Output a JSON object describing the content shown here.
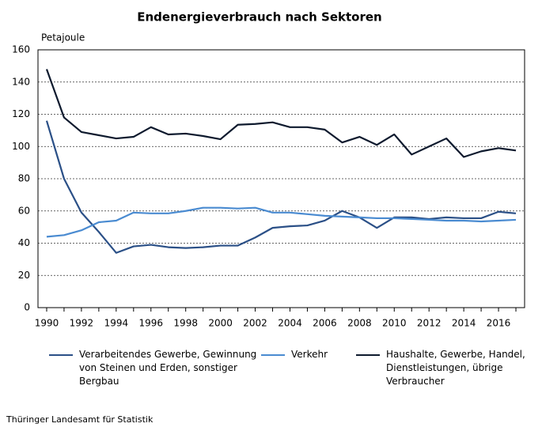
{
  "chart_data": {
    "type": "line",
    "title": "Endenergieverbrauch nach Sektoren",
    "y_label": "Petajoule",
    "source": "Thüringer Landesamt für Statistik",
    "x": [
      1990,
      1991,
      1992,
      1993,
      1994,
      1995,
      1996,
      1997,
      1998,
      1999,
      2000,
      2001,
      2002,
      2003,
      2004,
      2005,
      2006,
      2007,
      2008,
      2009,
      2010,
      2011,
      2012,
      2013,
      2014,
      2015,
      2016,
      2017
    ],
    "series": [
      {
        "name": "Verarbeitendes Gewerbe, Gewinnung von Steinen und Erden, sonstiger Bergbau",
        "color": "#2b5087",
        "values": [
          116,
          80,
          59,
          47,
          34,
          38,
          39,
          37.5,
          37,
          37.5,
          38.5,
          38.5,
          43.5,
          49.5,
          50.5,
          51,
          54,
          60,
          56,
          49.5,
          56,
          56,
          55,
          56,
          55.5,
          55.5,
          59.5,
          58.5
        ]
      },
      {
        "name": "Verkehr",
        "color": "#4a8bd1",
        "values": [
          44,
          45,
          48,
          53,
          54,
          59,
          58.5,
          58.5,
          60,
          62,
          62,
          61.5,
          62,
          59,
          59,
          58,
          57,
          56.5,
          56,
          55.5,
          55.5,
          55,
          54.5,
          54,
          54,
          53.5,
          54,
          54.5
        ]
      },
      {
        "name": "Haushalte, Gewerbe, Handel, Dienstleistungen, übrige Verbraucher",
        "color": "#0e1a2e",
        "values": [
          148,
          118,
          109,
          107,
          105,
          106,
          112,
          107.5,
          108,
          106.5,
          104.5,
          113.5,
          114,
          115,
          112,
          112,
          110.5,
          102.5,
          106,
          101,
          107.5,
          95,
          100,
          105,
          93.5,
          97,
          99,
          97.5
        ]
      }
    ],
    "xlim": [
      1989.5,
      2017.5
    ],
    "xticks": [
      1990,
      1992,
      1994,
      1996,
      1998,
      2000,
      2002,
      2004,
      2006,
      2008,
      2010,
      2012,
      2014,
      2016
    ],
    "ylim": [
      0,
      160
    ],
    "yticks": [
      0,
      20,
      40,
      60,
      80,
      100,
      120,
      140,
      160
    ],
    "grid": true
  }
}
